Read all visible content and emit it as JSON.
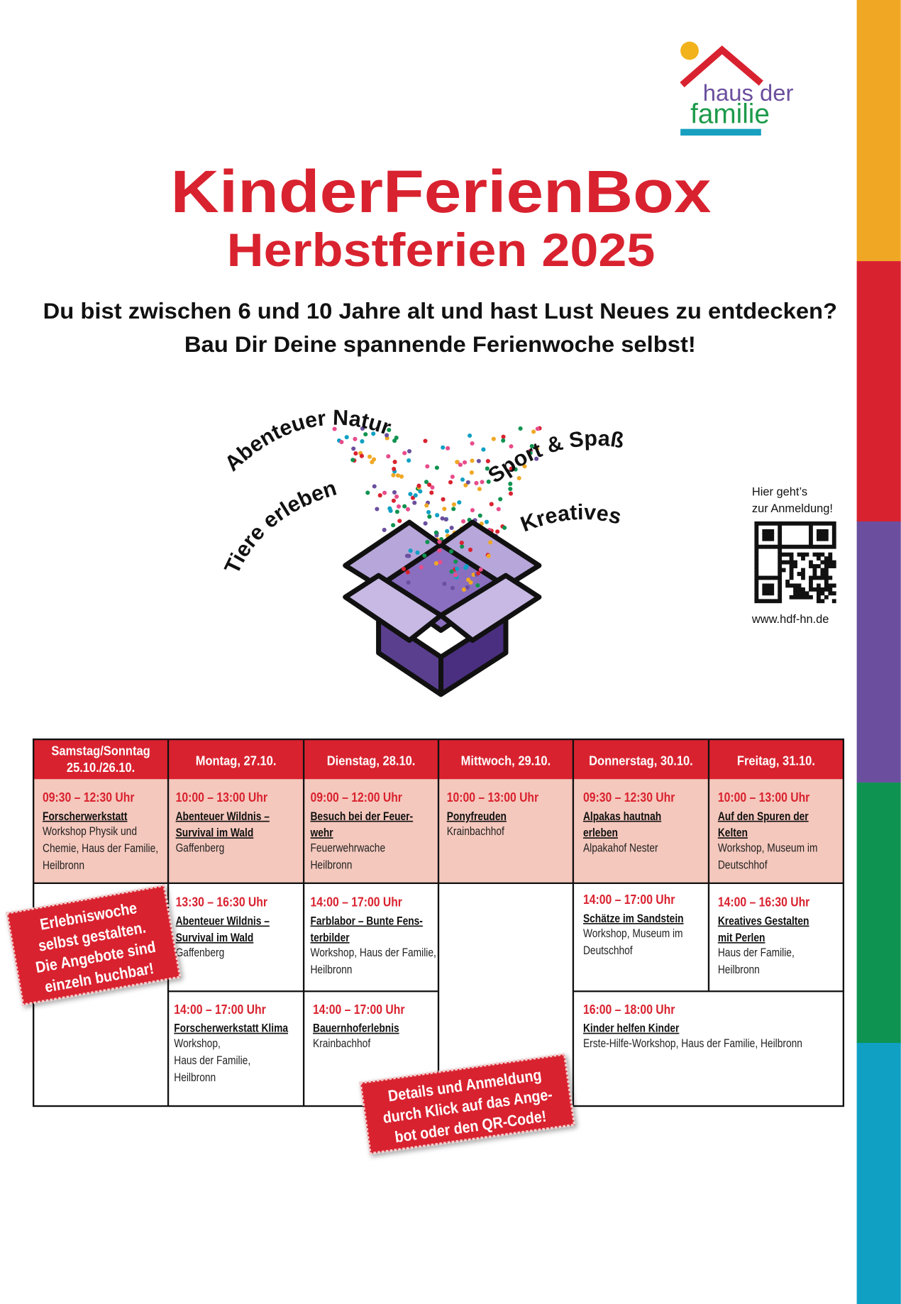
{
  "logo": {
    "line1": "haus der",
    "line2": "familie"
  },
  "header": {
    "title": "KinderFerienBox",
    "subtitle": "Herbstferien 2025",
    "intro": [
      "Du bist zwischen 6 und 10 Jahre alt und hast Lust Neues zu entdecken?",
      "Bau Dir Deine spannende Ferienwoche selbst!"
    ]
  },
  "themes": [
    "Abenteuer Natur",
    "Tiere erleben",
    "Sport & Spaß",
    "Kreatives"
  ],
  "qr": {
    "caption": [
      "Hier geht’s",
      "zur Anmeldung!"
    ],
    "url": "www.hdf-hn.de"
  },
  "table": {
    "headers": [
      [
        "Samstag/Sonntag",
        "25.10./26.10."
      ],
      [
        "Montag, 27.10."
      ],
      [
        "Dienstag, 28.10."
      ],
      [
        "Mittwoch, 29.10."
      ],
      [
        "Donnerstag, 30.10."
      ],
      [
        "Freitag, 31.10."
      ]
    ],
    "cells": [
      {
        "time": "09:30 – 12:30 Uhr",
        "title": [
          "Forscherwerkstatt"
        ],
        "desc": [
          "Workshop Physik und",
          "Chemie, Haus der Familie,",
          "Heilbronn"
        ]
      },
      {
        "time": "10:00 – 13:00 Uhr",
        "title": [
          "Abenteuer Wildnis –",
          "Survival im Wald"
        ],
        "desc": [
          "Gaffenberg"
        ]
      },
      {
        "time": "09:00 – 12:00 Uhr",
        "title": [
          "Besuch bei der Feuer-",
          "wehr"
        ],
        "desc": [
          "Feuerwehrwache",
          "Heilbronn"
        ]
      },
      {
        "time": "10:00 – 13:00 Uhr",
        "title": [
          "Ponyfreuden"
        ],
        "desc": [
          "Krainbachhof"
        ]
      },
      {
        "time": "09:30 – 12:30 Uhr",
        "title": [
          "Alpakas hautnah",
          "erleben"
        ],
        "desc": [
          "Alpakahof Nester"
        ]
      },
      {
        "time": "10:00 – 13:00 Uhr",
        "title": [
          "Auf den Spuren der",
          "Kelten"
        ],
        "desc": [
          "Workshop, Museum im",
          "Deutschhof"
        ]
      },
      {
        "time": "13:30 – 16:30 Uhr",
        "title": [
          "Abenteuer Wildnis –",
          "Survival im Wald"
        ],
        "desc": [
          "Gaffenberg"
        ]
      },
      {
        "time": "14:00 – 17:00 Uhr",
        "title": [
          "Farblabor – Bunte Fens-",
          "terbilder"
        ],
        "desc": [
          "Workshop, Haus der Familie,",
          "Heilbronn"
        ]
      },
      {
        "time": "14:00 – 17:00 Uhr",
        "title": [
          "Schätze im Sandstein"
        ],
        "desc": [
          "Workshop, Museum im",
          "Deutschhof"
        ]
      },
      {
        "time": "14:00 – 16:30 Uhr",
        "title": [
          "Kreatives Gestalten",
          "mit Perlen"
        ],
        "desc": [
          "Haus der Familie,",
          "Heilbronn"
        ]
      },
      {
        "time": "14:00 – 17:00 Uhr",
        "title": [
          "Forscherwerkstatt Klima"
        ],
        "desc": [
          "Workshop,",
          "Haus der Familie,",
          "Heilbronn"
        ]
      },
      {
        "time": "14:00 – 17:00 Uhr",
        "title": [
          "Bauernhoferlebnis"
        ],
        "desc": [
          "Krainbachhof"
        ]
      },
      {
        "time": "16:00 – 18:00 Uhr",
        "title": [
          "Kinder helfen Kinder"
        ],
        "desc": [
          "Erste-Hilfe-Workshop, Haus der Familie, Heilbronn"
        ]
      }
    ]
  },
  "stamps": [
    [
      "Erlebniswoche",
      "selbst gestalten.",
      "Die Angebote sind",
      "einzeln buchbar!"
    ],
    [
      "Details und  Anmeldung",
      "durch Klick auf das Ange-",
      "bot oder den QR-Code!"
    ]
  ]
}
